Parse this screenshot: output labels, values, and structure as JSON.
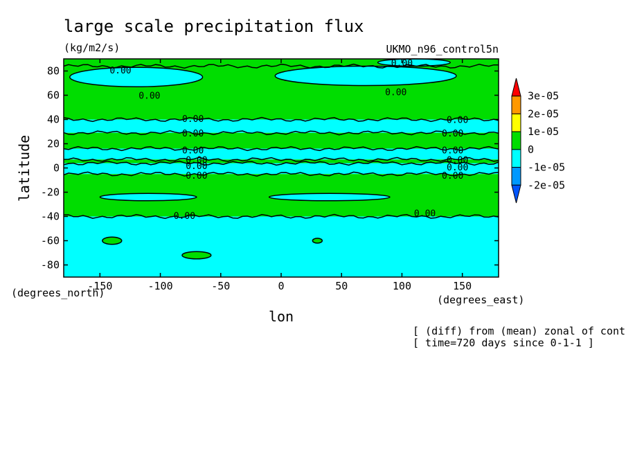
{
  "chart_data": {
    "type": "contour",
    "title": "large scale precipitation flux",
    "units": "(kg/m2/s)",
    "dataset": "UKMO_n96_control5n",
    "xlabel": "lon",
    "ylabel": "latitude",
    "x_unit_label": "(degrees_east)",
    "y_unit_label": "(degrees_north)",
    "xlim": [
      -180,
      180
    ],
    "ylim": [
      -90,
      90
    ],
    "xticks": [
      {
        "value": -150,
        "label": "-150"
      },
      {
        "value": -100,
        "label": "-100"
      },
      {
        "value": -50,
        "label": "-50"
      },
      {
        "value": 0,
        "label": "0"
      },
      {
        "value": 50,
        "label": "50"
      },
      {
        "value": 100,
        "label": "100"
      },
      {
        "value": 150,
        "label": "150"
      }
    ],
    "yticks": [
      {
        "value": 80,
        "label": "80"
      },
      {
        "value": 60,
        "label": "60"
      },
      {
        "value": 40,
        "label": "40"
      },
      {
        "value": 20,
        "label": "20"
      },
      {
        "value": 0,
        "label": "0"
      },
      {
        "value": -20,
        "label": "-20"
      },
      {
        "value": -40,
        "label": "-40"
      },
      {
        "value": -60,
        "label": "-60"
      },
      {
        "value": -80,
        "label": "-80"
      }
    ],
    "colorbar": {
      "levels": [
        {
          "value": 3e-05,
          "label": "3e-05"
        },
        {
          "value": 2e-05,
          "label": "2e-05"
        },
        {
          "value": 1e-05,
          "label": "1e-05"
        },
        {
          "value": 0,
          "label": "0"
        },
        {
          "value": -1e-05,
          "label": "-1e-05"
        },
        {
          "value": -2e-05,
          "label": "-2e-05"
        }
      ],
      "colors": [
        "#ff0000",
        "#ff9900",
        "#ffff00",
        "#00dd00",
        "#00ffff",
        "#0099ff",
        "#0055ff"
      ]
    },
    "bands": [
      {
        "lat_min": 84,
        "lat_max": 90,
        "fill": "#00dd00"
      },
      {
        "lat_min": 40,
        "lat_max": 84,
        "fill": "#00dd00"
      },
      {
        "lat_min": 29,
        "lat_max": 40,
        "fill": "#00ffff"
      },
      {
        "lat_min": 16,
        "lat_max": 29,
        "fill": "#00dd00"
      },
      {
        "lat_min": 7,
        "lat_max": 16,
        "fill": "#00ffff"
      },
      {
        "lat_min": 4,
        "lat_max": 7,
        "fill": "#00dd00"
      },
      {
        "lat_min": -5,
        "lat_max": 4,
        "fill": "#00ffff"
      },
      {
        "lat_min": -40,
        "lat_max": -5,
        "fill": "#00dd00"
      },
      {
        "lat_min": -90,
        "lat_max": -40,
        "fill": "#00ffff"
      }
    ],
    "patches": [
      {
        "lon": -120,
        "lat": 75,
        "rx": 55,
        "ry": 8,
        "fill": "#00ffff"
      },
      {
        "lon": 70,
        "lat": 76,
        "rx": 75,
        "ry": 8,
        "fill": "#00ffff"
      },
      {
        "lon": 110,
        "lat": 87,
        "rx": 30,
        "ry": 3,
        "fill": "#00ffff"
      },
      {
        "lon": -110,
        "lat": -24,
        "rx": 40,
        "ry": 3,
        "fill": "#00ffff"
      },
      {
        "lon": 40,
        "lat": -24,
        "rx": 50,
        "ry": 3,
        "fill": "#00ffff"
      },
      {
        "lon": -140,
        "lat": -60,
        "rx": 8,
        "ry": 3,
        "fill": "#00dd00"
      },
      {
        "lon": -70,
        "lat": -72,
        "rx": 12,
        "ry": 3,
        "fill": "#00dd00"
      },
      {
        "lon": 30,
        "lat": -60,
        "rx": 4,
        "ry": 2,
        "fill": "#00dd00"
      }
    ],
    "contour_labels": [
      {
        "lon": -133,
        "lat": 81,
        "text": "0.00"
      },
      {
        "lon": -109,
        "lat": 60,
        "text": "0.00"
      },
      {
        "lon": 100,
        "lat": 87,
        "text": "0.00"
      },
      {
        "lon": 95,
        "lat": 63,
        "text": "0.00"
      },
      {
        "lon": -73,
        "lat": 41,
        "text": "0.00"
      },
      {
        "lon": -73,
        "lat": 29,
        "text": "0.00"
      },
      {
        "lon": 146,
        "lat": 40,
        "text": "0.00"
      },
      {
        "lon": 142,
        "lat": 29,
        "text": "0.00"
      },
      {
        "lon": -73,
        "lat": 15,
        "text": "0.00"
      },
      {
        "lon": 142,
        "lat": 15,
        "text": "0.00"
      },
      {
        "lon": -70,
        "lat": 7,
        "text": "0.00"
      },
      {
        "lon": -70,
        "lat": 2,
        "text": "0.00"
      },
      {
        "lon": 146,
        "lat": 7,
        "text": "0.00"
      },
      {
        "lon": 146,
        "lat": 1,
        "text": "0.00"
      },
      {
        "lon": -70,
        "lat": -6,
        "text": "0.00"
      },
      {
        "lon": 142,
        "lat": -6,
        "text": "0.00"
      },
      {
        "lon": -80,
        "lat": -39,
        "text": "0.00"
      },
      {
        "lon": 119,
        "lat": -37,
        "text": "0.00"
      }
    ],
    "footer_lines": [
      "[ (diff) from (mean) zonal of control ]",
      "[ time=720 days since 0-1-1 ]"
    ]
  }
}
